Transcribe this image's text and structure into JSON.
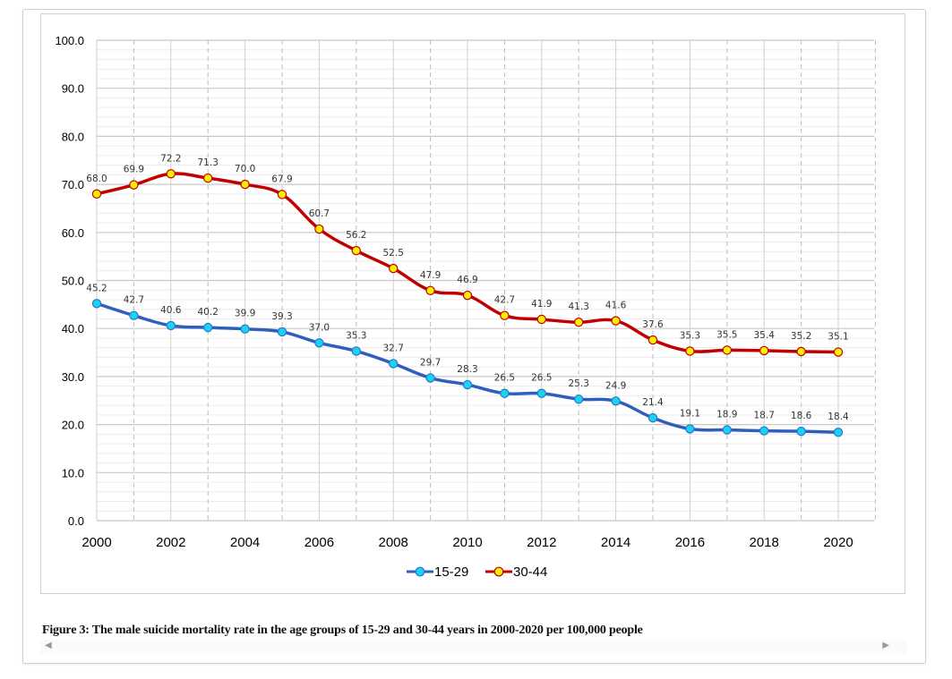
{
  "caption": "Figure 3: The male suicide mortality rate in the age groups of 15-29 and 30-44 years in 2000-2020 per 100,000 people",
  "scroll": {
    "left_icon": "scroll-left-arrow",
    "right_icon": "scroll-right-arrow",
    "left_glyph": "◀",
    "right_glyph": "▶"
  },
  "chart_data": {
    "type": "line",
    "title": "",
    "xlabel": "",
    "ylabel": "",
    "x": [
      2000,
      2001,
      2002,
      2003,
      2004,
      2005,
      2006,
      2007,
      2008,
      2009,
      2010,
      2011,
      2012,
      2013,
      2014,
      2015,
      2016,
      2017,
      2018,
      2019,
      2020
    ],
    "x_tick_labels": [
      "2000",
      "2002",
      "2004",
      "2006",
      "2008",
      "2010",
      "2012",
      "2014",
      "2016",
      "2018",
      "2020"
    ],
    "y_tick_labels": [
      "0.0",
      "10.0",
      "20.0",
      "30.0",
      "40.0",
      "50.0",
      "60.0",
      "70.0",
      "80.0",
      "90.0",
      "100.0"
    ],
    "ylim": [
      0,
      100
    ],
    "grid": true,
    "legend_position": "bottom",
    "series": [
      {
        "name": "15-29",
        "line_color": "#2e5fbf",
        "marker_color": "#19d3f0",
        "values": [
          45.2,
          42.7,
          40.6,
          40.2,
          39.9,
          39.3,
          37.0,
          35.3,
          32.7,
          29.7,
          28.3,
          26.5,
          26.5,
          25.3,
          24.9,
          21.4,
          19.1,
          18.9,
          18.7,
          18.6,
          18.4
        ],
        "labels": [
          "45.2",
          "42.7",
          "40.6",
          "40.2",
          "39.9",
          "39.3",
          "37.0",
          "35.3",
          "32.7",
          "29.7",
          "28.3",
          "26.5",
          "26.5",
          "25.3",
          "24.9",
          "21.4",
          "19.1",
          "18.9",
          "18.7",
          "18.6",
          "18.4"
        ]
      },
      {
        "name": "30-44",
        "line_color": "#c00000",
        "marker_color": "#ffee00",
        "values": [
          68.0,
          69.9,
          72.2,
          71.3,
          70.0,
          67.9,
          60.7,
          56.2,
          52.5,
          47.9,
          46.9,
          42.7,
          41.9,
          41.3,
          41.6,
          37.6,
          35.3,
          35.5,
          35.4,
          35.2,
          35.1
        ],
        "labels": [
          "68.0",
          "69.9",
          "72.2",
          "71.3",
          "70.0",
          "67.9",
          "60.7",
          "56.2",
          "52.5",
          "47.9",
          "46.9",
          "42.7",
          "41.9",
          "41.3",
          "41.6",
          "37.6",
          "35.3",
          "35.5",
          "35.4",
          "35.2",
          "35.1"
        ]
      }
    ]
  }
}
